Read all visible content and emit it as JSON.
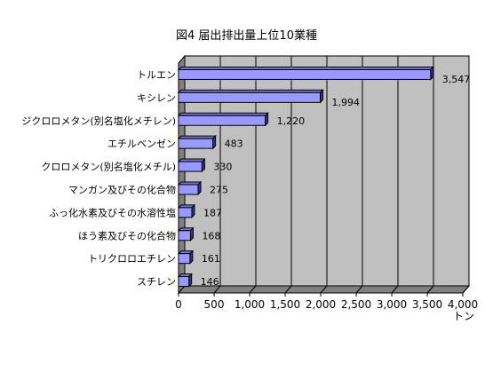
{
  "chart_data": {
    "type": "bar",
    "orientation": "horizontal",
    "title": "図4  届出排出量上位10業種",
    "xlabel": "トン",
    "ylabel": "",
    "categories": [
      "トルエン",
      "キシレン",
      "ジクロロメタン(別名塩化メチレン)",
      "エチルベンゼン",
      "クロロメタン(別名塩化メチル)",
      "マンガン及びその化合物",
      "ふっ化水素及びその水溶性塩",
      "ほう素及びその化合物",
      "トリクロロエチレン",
      "スチレン"
    ],
    "values": [
      3547,
      1994,
      1220,
      483,
      330,
      275,
      187,
      168,
      161,
      146
    ],
    "value_labels": [
      "3,547",
      "1,994",
      "1,220",
      "483",
      "330",
      "275",
      "187",
      "168",
      "161",
      "146"
    ],
    "xlim": [
      0,
      4000
    ],
    "xticks": [
      0,
      500,
      1000,
      1500,
      2000,
      2500,
      3000,
      3500,
      4000
    ],
    "xtick_labels": [
      "0",
      "500",
      "1,000",
      "1,500",
      "2,000",
      "2,500",
      "3,000",
      "3,500",
      "4,000"
    ],
    "grid": true,
    "bar_color": "#9999ff",
    "bar_edge_color": "#000000",
    "wall_color": "#c0c0c0"
  }
}
